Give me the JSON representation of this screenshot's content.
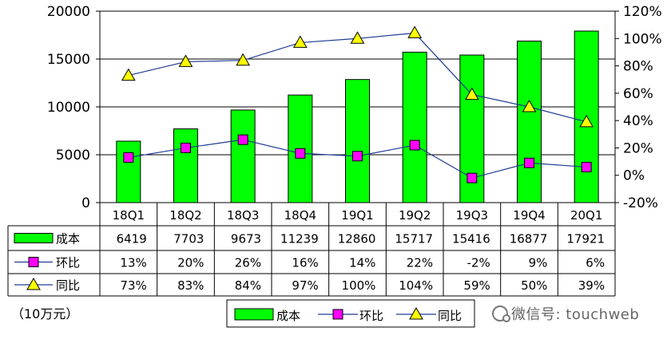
{
  "chart_data": {
    "type": "bar",
    "categories": [
      "18Q1",
      "18Q2",
      "18Q3",
      "18Q4",
      "19Q1",
      "19Q2",
      "19Q3",
      "19Q4",
      "20Q1"
    ],
    "series": [
      {
        "name": "成本",
        "type": "bar",
        "axis": "left",
        "color": "#00ff00",
        "values": [
          6419,
          7703,
          9673,
          11239,
          12860,
          15717,
          15416,
          16877,
          17921
        ]
      },
      {
        "name": "环比",
        "type": "line",
        "axis": "right",
        "marker": "square",
        "color": "#ff00ff",
        "values": [
          13,
          20,
          26,
          16,
          14,
          22,
          -2,
          9,
          6
        ],
        "labels": [
          "13%",
          "20%",
          "26%",
          "16%",
          "14%",
          "22%",
          "-2%",
          "9%",
          "6%"
        ]
      },
      {
        "name": "同比",
        "type": "line",
        "axis": "right",
        "marker": "triangle",
        "color": "#ffff00",
        "values": [
          73,
          83,
          84,
          97,
          100,
          104,
          59,
          50,
          39
        ],
        "labels": [
          "73%",
          "83%",
          "84%",
          "97%",
          "100%",
          "104%",
          "59%",
          "50%",
          "39%"
        ]
      }
    ],
    "ylim": [
      0,
      20000
    ],
    "y_ticks": [
      "0",
      "5000",
      "10000",
      "15000",
      "20000"
    ],
    "y2lim": [
      -20,
      120
    ],
    "y2_ticks": [
      "-20%",
      "0%",
      "20%",
      "40%",
      "60%",
      "80%",
      "100%",
      "120%"
    ],
    "unit": "（10万元）",
    "grid": "horizontal",
    "legend": "bottom",
    "line_color": "#1f3a93"
  },
  "watermark": "微信号: touchweb"
}
